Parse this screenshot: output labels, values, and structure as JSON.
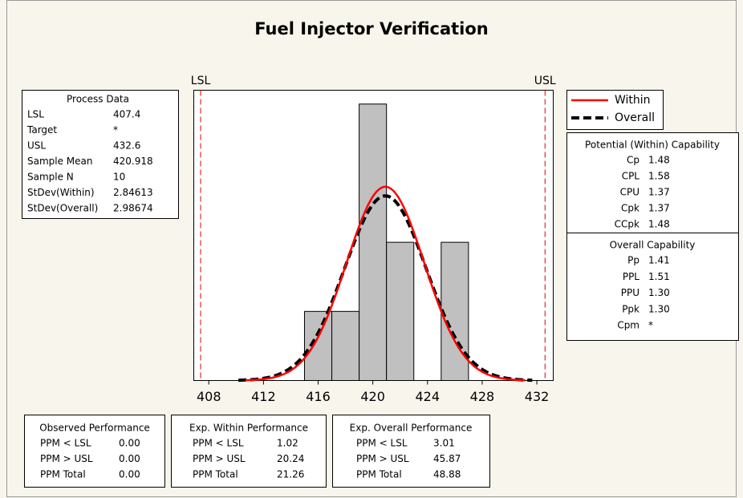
{
  "chart_data": {
    "type": "histogram",
    "title": "Fuel Injector Verification",
    "bins": [
      415,
      417,
      419,
      421,
      423,
      425,
      427
    ],
    "counts": [
      1,
      1,
      4,
      2,
      0,
      2
    ],
    "bar_color": "#c0c0c0",
    "xlim": [
      406.9,
      433.2
    ],
    "xticks": [
      408,
      412,
      416,
      420,
      424,
      428,
      432
    ],
    "ylim": [
      0,
      4.2
    ],
    "spec_limits": [
      {
        "label": "LSL",
        "color": "#e00000"
      },
      {
        "label": "USL",
        "color": "#e00000"
      }
    ],
    "series": [
      {
        "name": "Within",
        "color": "#ff0000"
      },
      {
        "name": "Overall",
        "color": "#000000"
      }
    ]
  },
  "process_data": {
    "title": "Process Data",
    "rows": [
      [
        "LSL",
        407.4
      ],
      [
        "Target",
        "*"
      ],
      [
        "USL",
        432.6
      ],
      [
        "Sample Mean",
        420.918
      ],
      [
        "Sample N",
        10
      ],
      [
        "StDev(Within)",
        2.84613
      ],
      [
        "StDev(Overall)",
        2.98674
      ]
    ]
  },
  "potential_capability": {
    "title": "Potential (Within) Capability",
    "rows": [
      [
        "Cp",
        "1.48"
      ],
      [
        "CPL",
        "1.58"
      ],
      [
        "CPU",
        "1.37"
      ],
      [
        "Cpk",
        "1.37"
      ],
      [
        "CCpk",
        "1.48"
      ]
    ]
  },
  "overall_capability": {
    "title": "Overall Capability",
    "rows": [
      [
        "Pp",
        "1.41"
      ],
      [
        "PPL",
        "1.51"
      ],
      [
        "PPU",
        "1.30"
      ],
      [
        "Ppk",
        "1.30"
      ],
      [
        "Cpm",
        "*"
      ]
    ]
  },
  "observed_performance": {
    "title": "Observed Performance",
    "rows": [
      [
        "PPM < LSL",
        "0.00"
      ],
      [
        "PPM > USL",
        "0.00"
      ],
      [
        "PPM Total",
        "0.00"
      ]
    ]
  },
  "exp_within_performance": {
    "title": "Exp. Within Performance",
    "rows": [
      [
        "PPM < LSL",
        "1.02"
      ],
      [
        "PPM > USL",
        "20.24"
      ],
      [
        "PPM Total",
        "21.26"
      ]
    ]
  },
  "exp_overall_performance": {
    "title": "Exp. Overall Performance",
    "rows": [
      [
        "PPM < LSL",
        "3.01"
      ],
      [
        "PPM > USL",
        "45.87"
      ],
      [
        "PPM Total",
        "48.88"
      ]
    ]
  }
}
